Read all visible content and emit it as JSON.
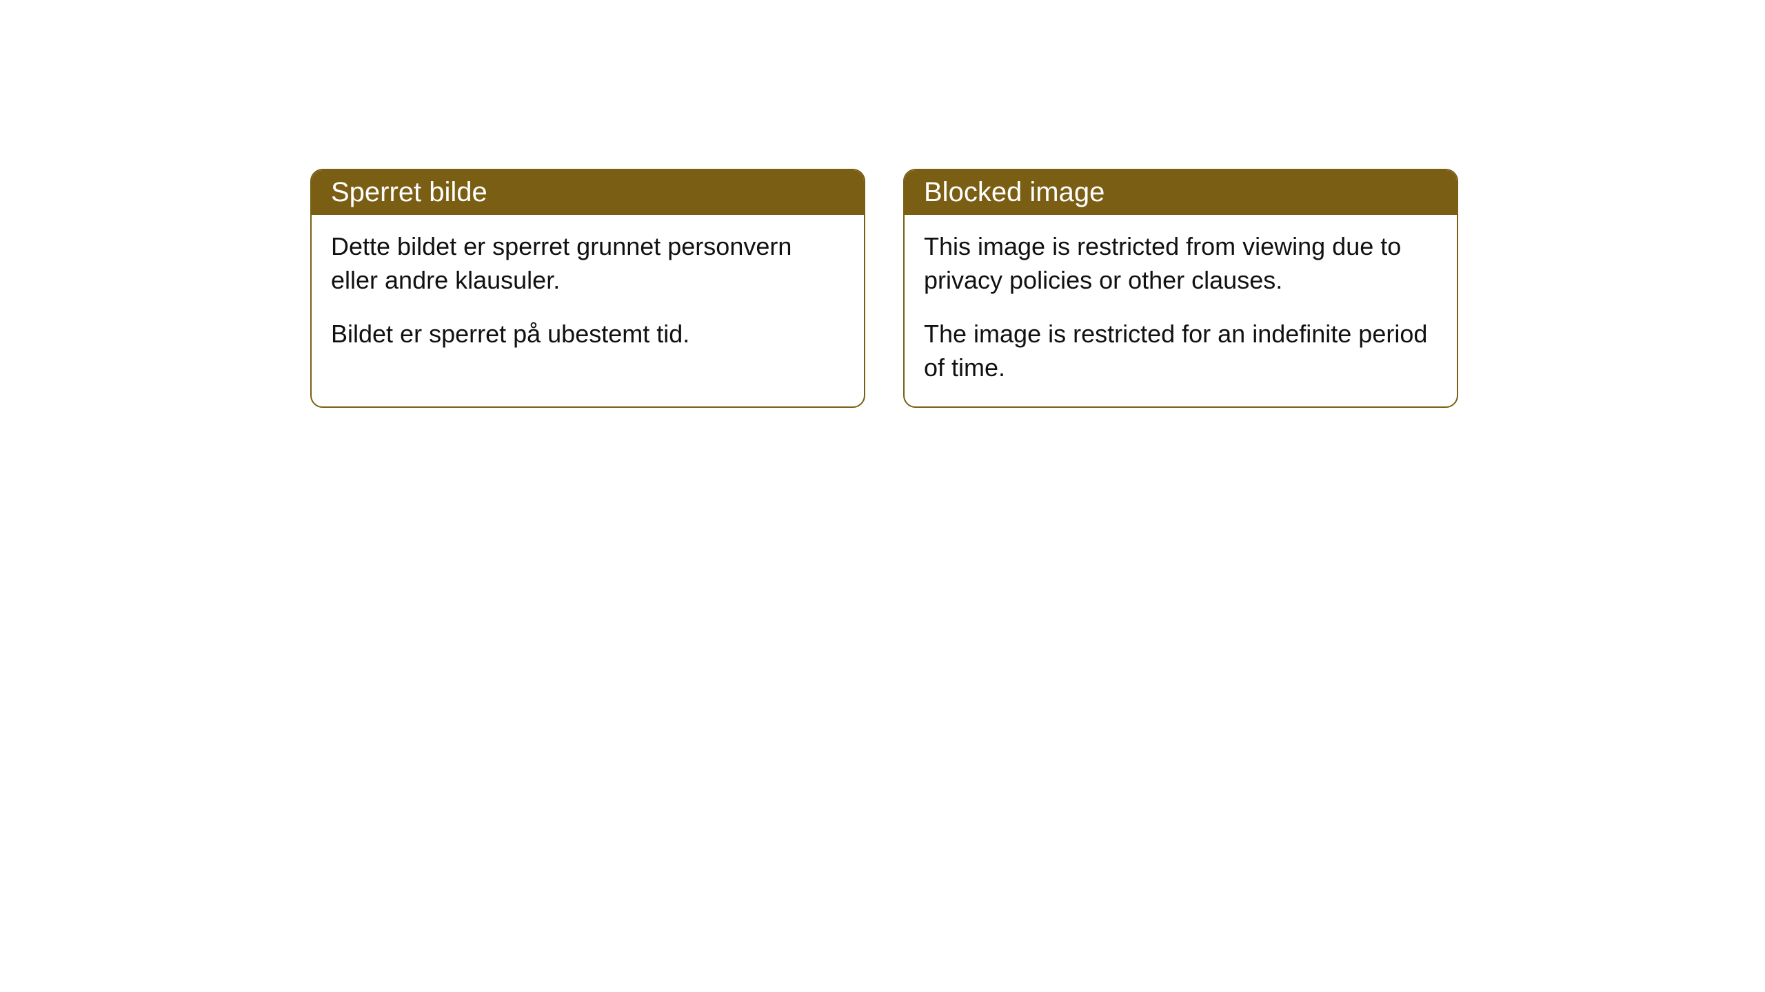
{
  "cards": [
    {
      "title": "Sperret bilde",
      "paragraph1": "Dette bildet er sperret grunnet personvern eller andre klausuler.",
      "paragraph2": "Bildet er sperret på ubestemt tid."
    },
    {
      "title": "Blocked image",
      "paragraph1": "This image is restricted from viewing due to privacy policies or other clauses.",
      "paragraph2": "The image is restricted for an indefinite period of time."
    }
  ],
  "styling": {
    "header_background": "#7a5e14",
    "header_text_color": "#ffffff",
    "border_color": "#7a5e14",
    "body_background": "#ffffff",
    "body_text_color": "#111111",
    "border_radius": 18,
    "title_fontsize": 40,
    "body_fontsize": 36
  }
}
